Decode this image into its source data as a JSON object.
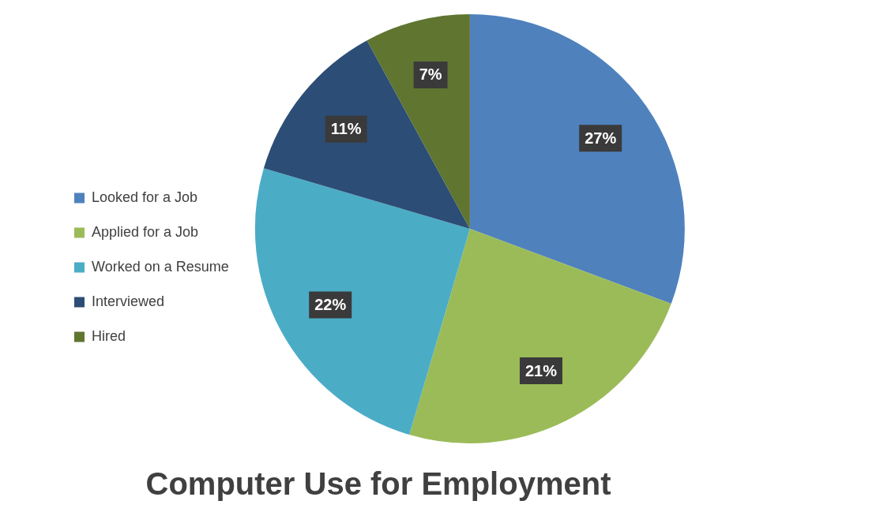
{
  "chart_data": {
    "type": "pie",
    "title": "Computer Use for Employment",
    "categories": [
      "Looked for a Job",
      "Applied for a Job",
      "Worked on a Resume",
      "Interviewed",
      "Hired"
    ],
    "values": [
      27,
      21,
      22,
      11,
      7
    ],
    "value_labels": [
      "27%",
      "21%",
      "22%",
      "11%",
      "7%"
    ],
    "colors": [
      "#4f81bd",
      "#9bbb59",
      "#4bacc6",
      "#2c4d75",
      "#5f7530"
    ],
    "legend": "left"
  }
}
